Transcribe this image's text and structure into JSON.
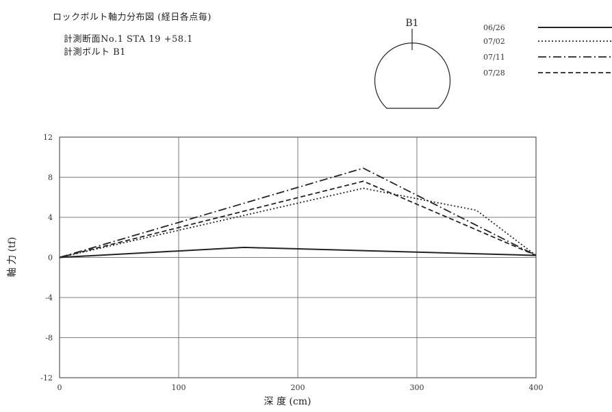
{
  "header": {
    "title": "ロックボルト軸力分布図 (経日各点毎)",
    "section_label": "計測断面No.1 STA 19 +58.1",
    "bolt_label": "計測ボルト B1"
  },
  "diagram": {
    "bolt_label": "B1"
  },
  "chart_data": {
    "type": "line",
    "title": "ロックボルト軸力分布図 (経日各点毎)",
    "xlabel": "深 度 (cm)",
    "ylabel": "軸 力 (tf)",
    "xlim": [
      0,
      400
    ],
    "ylim": [
      -12,
      12
    ],
    "xticks": [
      0,
      100,
      200,
      300,
      400
    ],
    "xtick_labels": [
      "0",
      "100",
      "200",
      "300",
      "400"
    ],
    "yticks": [
      12,
      8,
      4,
      0,
      -4,
      -8,
      -12
    ],
    "ytick_labels": [
      "12",
      "8",
      "4",
      "0",
      "-4",
      "-8",
      "-12"
    ],
    "grid": true,
    "legend_position": "top-right",
    "series": [
      {
        "name": "06/26",
        "style": "solid",
        "x": [
          0,
          155,
          400
        ],
        "y": [
          0,
          1.0,
          0.2
        ]
      },
      {
        "name": "07/02",
        "style": "dotted",
        "x": [
          0,
          255,
          350,
          400
        ],
        "y": [
          0,
          6.9,
          4.7,
          0.2
        ]
      },
      {
        "name": "07/11",
        "style": "dashdot",
        "x": [
          0,
          255,
          400
        ],
        "y": [
          0,
          8.9,
          0.2
        ]
      },
      {
        "name": "07/28",
        "style": "dashed",
        "x": [
          0,
          255,
          400
        ],
        "y": [
          0,
          7.6,
          0.2
        ]
      }
    ]
  },
  "colors": {
    "line": "#222222",
    "grid": "#555555"
  }
}
